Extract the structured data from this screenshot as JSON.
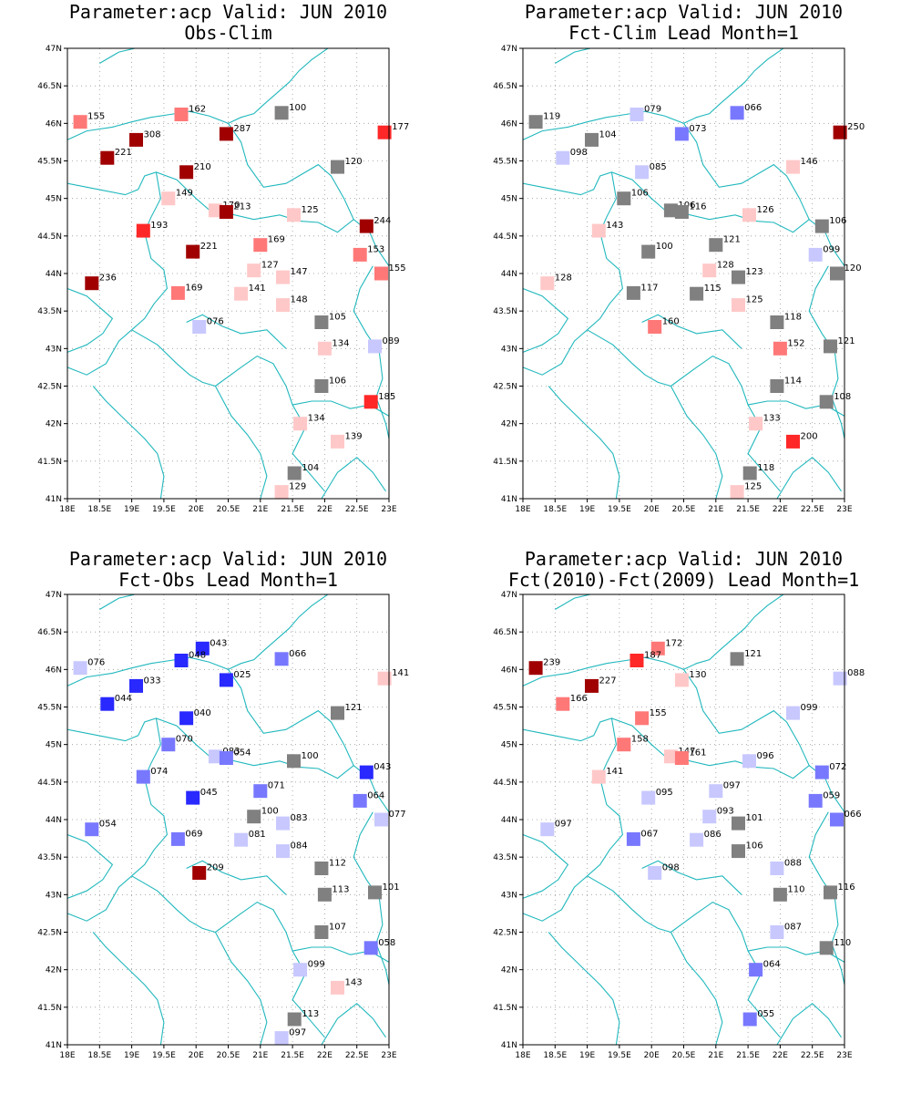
{
  "palette": {
    "neutral": "#808080",
    "plus": [
      "#ffc8c8",
      "#ff7878",
      "#ff2828",
      "#a00000"
    ],
    "minus": [
      "#c8c8ff",
      "#7878ff",
      "#2828ff"
    ],
    "coast": "#21b8bd"
  },
  "axes": {
    "lon_min": 18,
    "lon_max": 23,
    "lat_min": 41,
    "lat_max": 47,
    "x_ticks": [
      "18E",
      "18.5E",
      "19E",
      "19.5E",
      "20E",
      "20.5E",
      "21E",
      "21.5E",
      "22E",
      "22.5E",
      "23E"
    ],
    "y_ticks": [
      "41N",
      "41.5N",
      "42N",
      "42.5N",
      "43N",
      "43.5N",
      "44N",
      "44.5N",
      "45N",
      "45.5N",
      "46N",
      "46.5N",
      "47N"
    ]
  },
  "panels": [
    {
      "title1": "Parameter:acp Valid: JUN 2010",
      "title2": "Obs-Clim",
      "stations": [
        {
          "lon": 18.2,
          "lat": 46.02,
          "label": "155",
          "cls": "p2"
        },
        {
          "lon": 19.77,
          "lat": 46.12,
          "label": "162",
          "cls": "p2"
        },
        {
          "lon": 21.33,
          "lat": 46.14,
          "label": "100",
          "cls": "n"
        },
        {
          "lon": 22.93,
          "lat": 45.88,
          "label": "177",
          "cls": "p3"
        },
        {
          "lon": 19.07,
          "lat": 45.78,
          "label": "308",
          "cls": "p4"
        },
        {
          "lon": 20.47,
          "lat": 45.86,
          "label": "287",
          "cls": "p4"
        },
        {
          "lon": 18.62,
          "lat": 45.54,
          "label": "221",
          "cls": "p4"
        },
        {
          "lon": 22.2,
          "lat": 45.42,
          "label": "120",
          "cls": "n"
        },
        {
          "lon": 19.85,
          "lat": 45.35,
          "label": "210",
          "cls": "p4"
        },
        {
          "lon": 19.57,
          "lat": 45.0,
          "label": "149",
          "cls": "p1"
        },
        {
          "lon": 20.3,
          "lat": 44.84,
          "label": "170",
          "cls": "p1"
        },
        {
          "lon": 20.47,
          "lat": 44.82,
          "label": "213",
          "cls": "p4"
        },
        {
          "lon": 21.52,
          "lat": 44.78,
          "label": "125",
          "cls": "p1"
        },
        {
          "lon": 22.65,
          "lat": 44.63,
          "label": "244",
          "cls": "p4"
        },
        {
          "lon": 19.18,
          "lat": 44.57,
          "label": "193",
          "cls": "p3"
        },
        {
          "lon": 19.95,
          "lat": 44.29,
          "label": "221",
          "cls": "p4"
        },
        {
          "lon": 21.0,
          "lat": 44.38,
          "label": "169",
          "cls": "p2"
        },
        {
          "lon": 22.55,
          "lat": 44.25,
          "label": "153",
          "cls": "p2"
        },
        {
          "lon": 20.9,
          "lat": 44.04,
          "label": "127",
          "cls": "p1"
        },
        {
          "lon": 21.35,
          "lat": 43.95,
          "label": "147",
          "cls": "p1"
        },
        {
          "lon": 22.88,
          "lat": 44.0,
          "label": "155",
          "cls": "p2"
        },
        {
          "lon": 18.38,
          "lat": 43.87,
          "label": "236",
          "cls": "p4"
        },
        {
          "lon": 19.72,
          "lat": 43.74,
          "label": "169",
          "cls": "p2"
        },
        {
          "lon": 20.7,
          "lat": 43.73,
          "label": "141",
          "cls": "p1"
        },
        {
          "lon": 21.35,
          "lat": 43.58,
          "label": "148",
          "cls": "p1"
        },
        {
          "lon": 21.95,
          "lat": 43.35,
          "label": "105",
          "cls": "n"
        },
        {
          "lon": 20.05,
          "lat": 43.29,
          "label": "076",
          "cls": "m1"
        },
        {
          "lon": 22.0,
          "lat": 43.0,
          "label": "134",
          "cls": "p1"
        },
        {
          "lon": 22.78,
          "lat": 43.03,
          "label": "089",
          "cls": "m1"
        },
        {
          "lon": 21.95,
          "lat": 42.5,
          "label": "106",
          "cls": "n"
        },
        {
          "lon": 22.72,
          "lat": 42.29,
          "label": "185",
          "cls": "p3"
        },
        {
          "lon": 21.62,
          "lat": 42.0,
          "label": "134",
          "cls": "p1"
        },
        {
          "lon": 22.2,
          "lat": 41.76,
          "label": "139",
          "cls": "p1"
        },
        {
          "lon": 21.53,
          "lat": 41.34,
          "label": "104",
          "cls": "n"
        },
        {
          "lon": 21.33,
          "lat": 41.09,
          "label": "129",
          "cls": "p1"
        }
      ]
    },
    {
      "title1": "Parameter:acp Valid: JUN 2010",
      "title2": "Fct-Clim Lead Month=1",
      "stations": [
        {
          "lon": 18.2,
          "lat": 46.02,
          "label": "119",
          "cls": "n"
        },
        {
          "lon": 19.77,
          "lat": 46.12,
          "label": "079",
          "cls": "m1"
        },
        {
          "lon": 21.33,
          "lat": 46.14,
          "label": "066",
          "cls": "m2"
        },
        {
          "lon": 22.93,
          "lat": 45.88,
          "label": "250",
          "cls": "p4"
        },
        {
          "lon": 19.07,
          "lat": 45.78,
          "label": "104",
          "cls": "n"
        },
        {
          "lon": 20.47,
          "lat": 45.86,
          "label": "073",
          "cls": "m2"
        },
        {
          "lon": 18.62,
          "lat": 45.54,
          "label": "098",
          "cls": "m1"
        },
        {
          "lon": 22.2,
          "lat": 45.42,
          "label": "146",
          "cls": "p1"
        },
        {
          "lon": 19.85,
          "lat": 45.35,
          "label": "085",
          "cls": "m1"
        },
        {
          "lon": 19.57,
          "lat": 45.0,
          "label": "106",
          "cls": "n"
        },
        {
          "lon": 20.3,
          "lat": 44.84,
          "label": "106",
          "cls": "n"
        },
        {
          "lon": 20.47,
          "lat": 44.82,
          "label": "116",
          "cls": "n"
        },
        {
          "lon": 21.52,
          "lat": 44.78,
          "label": "126",
          "cls": "p1"
        },
        {
          "lon": 22.65,
          "lat": 44.63,
          "label": "106",
          "cls": "n"
        },
        {
          "lon": 19.18,
          "lat": 44.57,
          "label": "143",
          "cls": "p1"
        },
        {
          "lon": 19.95,
          "lat": 44.29,
          "label": "100",
          "cls": "n"
        },
        {
          "lon": 21.0,
          "lat": 44.38,
          "label": "121",
          "cls": "n"
        },
        {
          "lon": 22.55,
          "lat": 44.25,
          "label": "099",
          "cls": "m1"
        },
        {
          "lon": 20.9,
          "lat": 44.04,
          "label": "128",
          "cls": "p1"
        },
        {
          "lon": 21.35,
          "lat": 43.95,
          "label": "123",
          "cls": "n"
        },
        {
          "lon": 22.88,
          "lat": 44.0,
          "label": "120",
          "cls": "n"
        },
        {
          "lon": 18.38,
          "lat": 43.87,
          "label": "128",
          "cls": "p1"
        },
        {
          "lon": 19.72,
          "lat": 43.74,
          "label": "117",
          "cls": "n"
        },
        {
          "lon": 20.7,
          "lat": 43.73,
          "label": "115",
          "cls": "n"
        },
        {
          "lon": 21.35,
          "lat": 43.58,
          "label": "125",
          "cls": "p1"
        },
        {
          "lon": 21.95,
          "lat": 43.35,
          "label": "118",
          "cls": "n"
        },
        {
          "lon": 20.05,
          "lat": 43.29,
          "label": "160",
          "cls": "p2"
        },
        {
          "lon": 22.0,
          "lat": 43.0,
          "label": "152",
          "cls": "p2"
        },
        {
          "lon": 22.78,
          "lat": 43.03,
          "label": "121",
          "cls": "n"
        },
        {
          "lon": 21.95,
          "lat": 42.5,
          "label": "114",
          "cls": "n"
        },
        {
          "lon": 22.72,
          "lat": 42.29,
          "label": "108",
          "cls": "n"
        },
        {
          "lon": 21.62,
          "lat": 42.0,
          "label": "133",
          "cls": "p1"
        },
        {
          "lon": 22.2,
          "lat": 41.76,
          "label": "200",
          "cls": "p3"
        },
        {
          "lon": 21.53,
          "lat": 41.34,
          "label": "118",
          "cls": "n"
        },
        {
          "lon": 21.33,
          "lat": 41.09,
          "label": "125",
          "cls": "p1"
        }
      ]
    },
    {
      "title1": "Parameter:acp Valid: JUN 2010",
      "title2": "Fct-Obs Lead Month=1",
      "stations": [
        {
          "lon": 18.2,
          "lat": 46.02,
          "label": "076",
          "cls": "m1"
        },
        {
          "lon": 20.1,
          "lat": 46.28,
          "label": "043",
          "cls": "m3"
        },
        {
          "lon": 19.77,
          "lat": 46.12,
          "label": "048",
          "cls": "m3"
        },
        {
          "lon": 21.33,
          "lat": 46.14,
          "label": "066",
          "cls": "m2"
        },
        {
          "lon": 22.93,
          "lat": 45.88,
          "label": "141",
          "cls": "p1"
        },
        {
          "lon": 19.07,
          "lat": 45.78,
          "label": "033",
          "cls": "m3"
        },
        {
          "lon": 20.47,
          "lat": 45.86,
          "label": "025",
          "cls": "m3"
        },
        {
          "lon": 18.62,
          "lat": 45.54,
          "label": "044",
          "cls": "m3"
        },
        {
          "lon": 22.2,
          "lat": 45.42,
          "label": "121",
          "cls": "n"
        },
        {
          "lon": 19.85,
          "lat": 45.35,
          "label": "040",
          "cls": "m3"
        },
        {
          "lon": 19.57,
          "lat": 45.0,
          "label": "070",
          "cls": "m2"
        },
        {
          "lon": 20.3,
          "lat": 44.84,
          "label": "083",
          "cls": "m1"
        },
        {
          "lon": 20.47,
          "lat": 44.82,
          "label": "054",
          "cls": "m2"
        },
        {
          "lon": 21.52,
          "lat": 44.78,
          "label": "100",
          "cls": "n"
        },
        {
          "lon": 22.65,
          "lat": 44.63,
          "label": "043",
          "cls": "m3"
        },
        {
          "lon": 19.18,
          "lat": 44.57,
          "label": "074",
          "cls": "m2"
        },
        {
          "lon": 19.95,
          "lat": 44.29,
          "label": "045",
          "cls": "m3"
        },
        {
          "lon": 21.0,
          "lat": 44.38,
          "label": "071",
          "cls": "m2"
        },
        {
          "lon": 22.55,
          "lat": 44.25,
          "label": "064",
          "cls": "m2"
        },
        {
          "lon": 20.9,
          "lat": 44.04,
          "label": "100",
          "cls": "n"
        },
        {
          "lon": 21.35,
          "lat": 43.95,
          "label": "083",
          "cls": "m1"
        },
        {
          "lon": 22.88,
          "lat": 44.0,
          "label": "077",
          "cls": "m1"
        },
        {
          "lon": 18.38,
          "lat": 43.87,
          "label": "054",
          "cls": "m2"
        },
        {
          "lon": 19.72,
          "lat": 43.74,
          "label": "069",
          "cls": "m2"
        },
        {
          "lon": 20.7,
          "lat": 43.73,
          "label": "081",
          "cls": "m1"
        },
        {
          "lon": 21.35,
          "lat": 43.58,
          "label": "084",
          "cls": "m1"
        },
        {
          "lon": 21.95,
          "lat": 43.35,
          "label": "112",
          "cls": "n"
        },
        {
          "lon": 20.05,
          "lat": 43.29,
          "label": "209",
          "cls": "p4"
        },
        {
          "lon": 22.0,
          "lat": 43.0,
          "label": "113",
          "cls": "n"
        },
        {
          "lon": 22.78,
          "lat": 43.03,
          "label": "101",
          "cls": "n"
        },
        {
          "lon": 21.95,
          "lat": 42.5,
          "label": "107",
          "cls": "n"
        },
        {
          "lon": 22.72,
          "lat": 42.29,
          "label": "058",
          "cls": "m2"
        },
        {
          "lon": 21.62,
          "lat": 42.0,
          "label": "099",
          "cls": "m1"
        },
        {
          "lon": 22.2,
          "lat": 41.76,
          "label": "143",
          "cls": "p1"
        },
        {
          "lon": 21.53,
          "lat": 41.34,
          "label": "113",
          "cls": "n"
        },
        {
          "lon": 21.33,
          "lat": 41.09,
          "label": "097",
          "cls": "m1"
        }
      ]
    },
    {
      "title1": "Parameter:acp Valid: JUN 2010",
      "title2": "Fct(2010)-Fct(2009) Lead Month=1",
      "stations": [
        {
          "lon": 18.2,
          "lat": 46.02,
          "label": "239",
          "cls": "p4"
        },
        {
          "lon": 20.1,
          "lat": 46.28,
          "label": "172",
          "cls": "p2"
        },
        {
          "lon": 19.77,
          "lat": 46.12,
          "label": "187",
          "cls": "p3"
        },
        {
          "lon": 21.33,
          "lat": 46.14,
          "label": "121",
          "cls": "n"
        },
        {
          "lon": 22.93,
          "lat": 45.88,
          "label": "088",
          "cls": "m1"
        },
        {
          "lon": 19.07,
          "lat": 45.78,
          "label": "227",
          "cls": "p4"
        },
        {
          "lon": 20.47,
          "lat": 45.86,
          "label": "130",
          "cls": "p1"
        },
        {
          "lon": 18.62,
          "lat": 45.54,
          "label": "166",
          "cls": "p2"
        },
        {
          "lon": 22.2,
          "lat": 45.42,
          "label": "099",
          "cls": "m1"
        },
        {
          "lon": 19.85,
          "lat": 45.35,
          "label": "155",
          "cls": "p2"
        },
        {
          "lon": 19.57,
          "lat": 45.0,
          "label": "158",
          "cls": "p2"
        },
        {
          "lon": 20.3,
          "lat": 44.84,
          "label": "147",
          "cls": "p1"
        },
        {
          "lon": 20.47,
          "lat": 44.82,
          "label": "161",
          "cls": "p2"
        },
        {
          "lon": 21.52,
          "lat": 44.78,
          "label": "096",
          "cls": "m1"
        },
        {
          "lon": 22.65,
          "lat": 44.63,
          "label": "072",
          "cls": "m2"
        },
        {
          "lon": 19.18,
          "lat": 44.57,
          "label": "141",
          "cls": "p1"
        },
        {
          "lon": 19.95,
          "lat": 44.29,
          "label": "095",
          "cls": "m1"
        },
        {
          "lon": 21.0,
          "lat": 44.38,
          "label": "097",
          "cls": "m1"
        },
        {
          "lon": 22.55,
          "lat": 44.25,
          "label": "059",
          "cls": "m2"
        },
        {
          "lon": 20.9,
          "lat": 44.04,
          "label": "093",
          "cls": "m1"
        },
        {
          "lon": 21.35,
          "lat": 43.95,
          "label": "101",
          "cls": "n"
        },
        {
          "lon": 22.88,
          "lat": 44.0,
          "label": "066",
          "cls": "m2"
        },
        {
          "lon": 18.38,
          "lat": 43.87,
          "label": "097",
          "cls": "m1"
        },
        {
          "lon": 19.72,
          "lat": 43.74,
          "label": "067",
          "cls": "m2"
        },
        {
          "lon": 20.7,
          "lat": 43.73,
          "label": "086",
          "cls": "m1"
        },
        {
          "lon": 21.35,
          "lat": 43.58,
          "label": "106",
          "cls": "n"
        },
        {
          "lon": 21.95,
          "lat": 43.35,
          "label": "088",
          "cls": "m1"
        },
        {
          "lon": 20.05,
          "lat": 43.29,
          "label": "098",
          "cls": "m1"
        },
        {
          "lon": 22.0,
          "lat": 43.0,
          "label": "110",
          "cls": "n"
        },
        {
          "lon": 22.78,
          "lat": 43.03,
          "label": "116",
          "cls": "n"
        },
        {
          "lon": 21.95,
          "lat": 42.5,
          "label": "087",
          "cls": "m1"
        },
        {
          "lon": 22.72,
          "lat": 42.29,
          "label": "110",
          "cls": "n"
        },
        {
          "lon": 21.62,
          "lat": 42.0,
          "label": "064",
          "cls": "m2"
        },
        {
          "lon": 21.53,
          "lat": 41.34,
          "label": "055",
          "cls": "m2"
        }
      ]
    }
  ]
}
